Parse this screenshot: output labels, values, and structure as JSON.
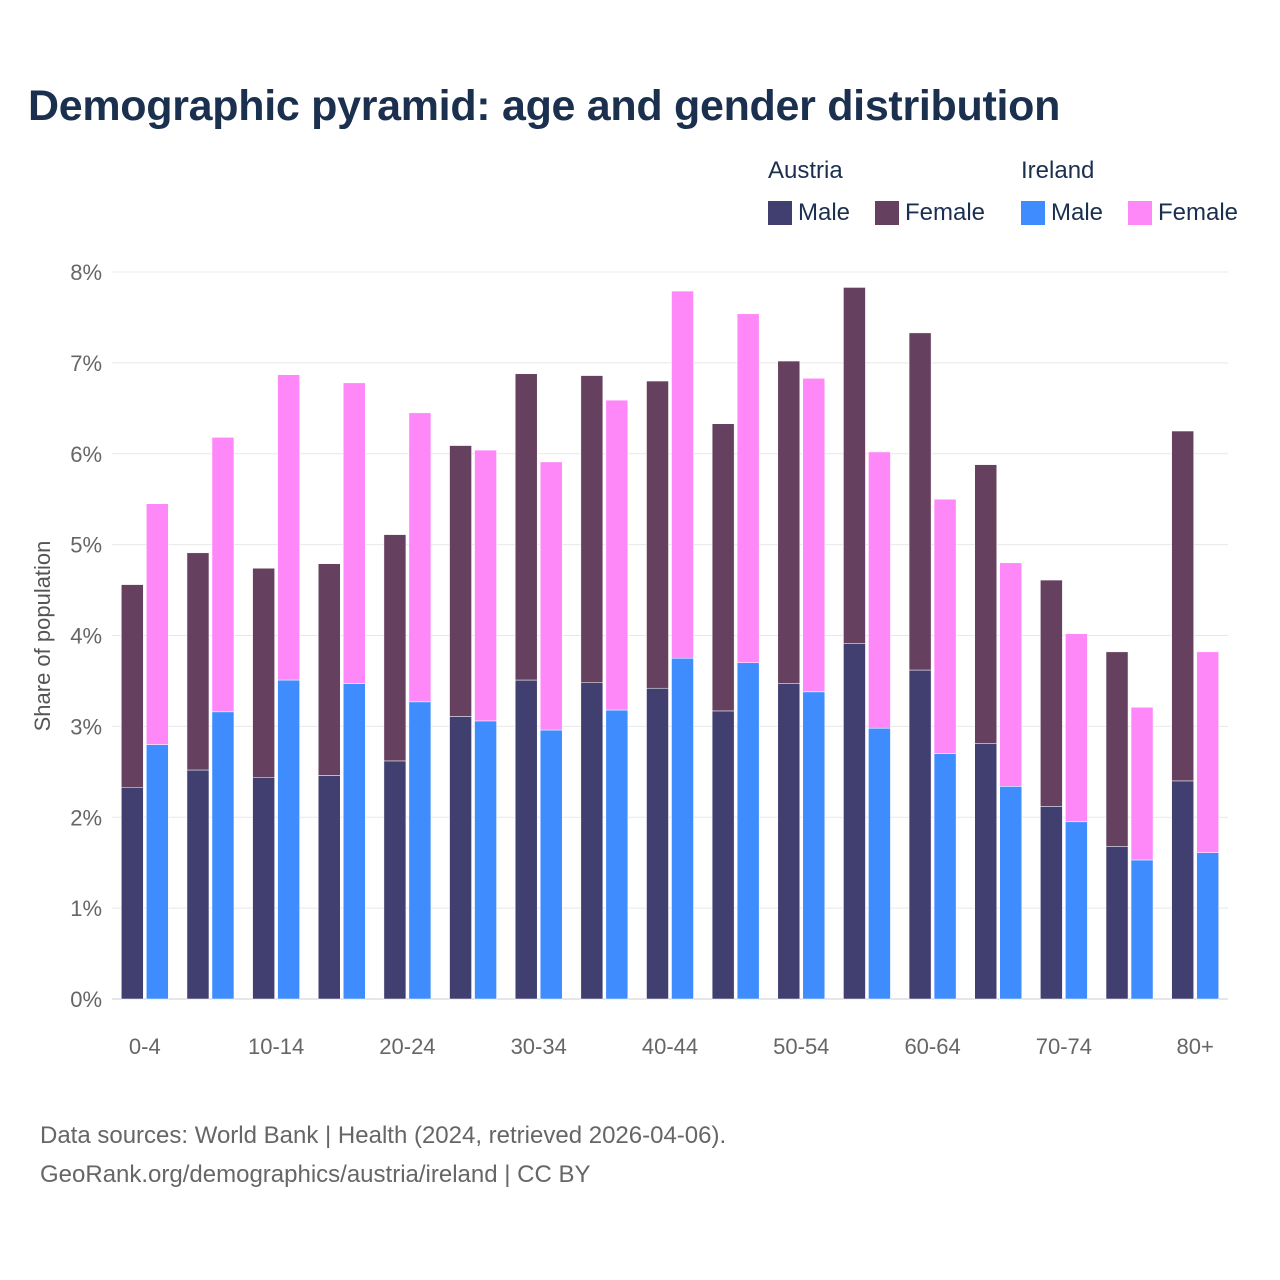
{
  "title": "Demographic pyramid: age and gender distribution",
  "legend": {
    "groups": [
      {
        "name": "Austria",
        "items": [
          {
            "label": "Male",
            "color": "#413f70"
          },
          {
            "label": "Female",
            "color": "#66405f"
          }
        ]
      },
      {
        "name": "Ireland",
        "items": [
          {
            "label": "Male",
            "color": "#3f8cff"
          },
          {
            "label": "Female",
            "color": "#ff88f8"
          }
        ]
      }
    ]
  },
  "source": {
    "line1": "Data sources: World Bank | Health (2024, retrieved 2026-04-06).",
    "line2": "GeoRank.org/demographics/austria/ireland | CC BY"
  },
  "chart_data": {
    "type": "bar",
    "stacked": true,
    "title": "Demographic pyramid: age and gender distribution",
    "xlabel": "",
    "ylabel": "Share of population",
    "ylim": [
      0,
      8
    ],
    "yticks": [
      "0%",
      "1%",
      "2%",
      "3%",
      "4%",
      "5%",
      "6%",
      "7%",
      "8%"
    ],
    "grid": true,
    "legend_position": "top-right",
    "categories": [
      "0-4",
      "5-9",
      "10-14",
      "15-19",
      "20-24",
      "25-29",
      "30-34",
      "35-39",
      "40-44",
      "45-49",
      "50-54",
      "55-59",
      "60-64",
      "65-69",
      "70-74",
      "75-79",
      "80+"
    ],
    "xtick_labels_shown": [
      "0-4",
      "10-14",
      "20-24",
      "30-34",
      "40-44",
      "50-54",
      "60-64",
      "70-74",
      "80+"
    ],
    "series": [
      {
        "name": "Austria Male",
        "stack": "Austria",
        "values": [
          2.33,
          2.52,
          2.44,
          2.46,
          2.62,
          3.11,
          3.51,
          3.48,
          3.42,
          3.17,
          3.47,
          3.91,
          3.62,
          2.81,
          2.12,
          1.68,
          2.4
        ]
      },
      {
        "name": "Austria Female",
        "stack": "Austria",
        "values": [
          2.23,
          2.39,
          2.3,
          2.33,
          2.49,
          2.98,
          3.37,
          3.38,
          3.38,
          3.16,
          3.55,
          3.92,
          3.71,
          3.07,
          2.49,
          2.14,
          3.85
        ]
      },
      {
        "name": "Ireland Male",
        "stack": "Ireland",
        "values": [
          2.8,
          3.16,
          3.51,
          3.47,
          3.27,
          3.06,
          2.96,
          3.18,
          3.75,
          3.7,
          3.38,
          2.98,
          2.7,
          2.34,
          1.95,
          1.53,
          1.61
        ]
      },
      {
        "name": "Ireland Female",
        "stack": "Ireland",
        "values": [
          2.65,
          3.02,
          3.36,
          3.31,
          3.18,
          2.98,
          2.95,
          3.41,
          4.04,
          3.84,
          3.45,
          3.04,
          2.8,
          2.46,
          2.07,
          1.68,
          2.21
        ]
      }
    ]
  }
}
